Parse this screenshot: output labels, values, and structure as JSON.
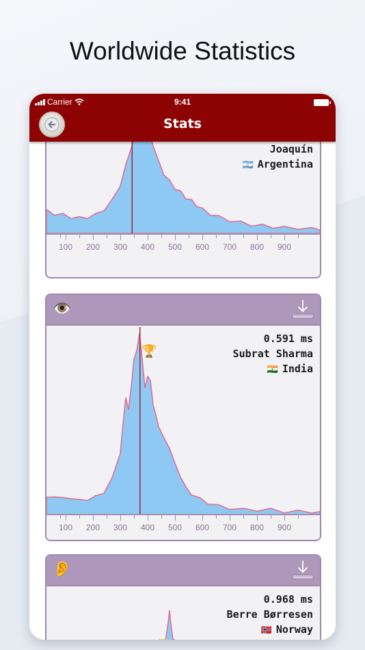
{
  "headline": "Worldwide Statistics",
  "status_bar": {
    "carrier": "Carrier",
    "time": "9:41"
  },
  "nav": {
    "title": "Stats"
  },
  "colors": {
    "nav": "#8d0203",
    "card_border": "#9f88ac",
    "card_head": "#ad98bb",
    "fill": "#8ec9f4",
    "stroke": "#de6f94",
    "marker": "#9a1c2e"
  },
  "cards": [
    {
      "sense_icon": "eye-icon",
      "record": {
        "value": "",
        "name": "Joaquín",
        "country": "Argentina",
        "flag": "🇦🇷"
      },
      "marker_ms": 343
    },
    {
      "sense_icon": "eye-icon",
      "record": {
        "value": "0.591 ms",
        "name": "Subrat Sharma",
        "country": "India",
        "flag": "🇮🇳"
      },
      "marker_ms": 372,
      "trophy": "🏆"
    },
    {
      "sense_icon": "ear-icon",
      "record": {
        "value": "0.968 ms",
        "name": "Berre Børresen",
        "country": "Norway",
        "flag": "🇳🇴"
      }
    }
  ],
  "chart_data": [
    {
      "type": "area",
      "xlabel": "",
      "ylabel": "",
      "xlim": [
        30,
        1030
      ],
      "x_ticks": [
        100,
        200,
        300,
        400,
        500,
        600,
        700,
        800,
        900
      ],
      "marker_x": 343,
      "x": [
        30,
        60,
        90,
        120,
        150,
        180,
        210,
        240,
        270,
        300,
        320,
        340,
        360,
        380,
        400,
        420,
        440,
        460,
        480,
        500,
        520,
        540,
        560,
        580,
        600,
        630,
        660,
        700,
        740,
        780,
        820,
        860,
        900,
        950,
        1000,
        1030
      ],
      "y": [
        0.22,
        0.18,
        0.17,
        0.15,
        0.14,
        0.15,
        0.17,
        0.22,
        0.3,
        0.45,
        0.62,
        0.8,
        0.95,
        1.0,
        0.98,
        0.82,
        0.66,
        0.55,
        0.48,
        0.42,
        0.38,
        0.33,
        0.3,
        0.26,
        0.22,
        0.18,
        0.15,
        0.12,
        0.1,
        0.08,
        0.07,
        0.06,
        0.05,
        0.05,
        0.04,
        0.03
      ]
    },
    {
      "type": "area",
      "xlabel": "",
      "ylabel": "",
      "xlim": [
        30,
        1030
      ],
      "x_ticks": [
        100,
        200,
        300,
        400,
        500,
        600,
        700,
        800,
        900
      ],
      "marker_x": 372,
      "x": [
        30,
        60,
        90,
        120,
        150,
        180,
        210,
        240,
        270,
        300,
        310,
        320,
        330,
        340,
        350,
        360,
        370,
        380,
        390,
        400,
        410,
        420,
        430,
        440,
        460,
        480,
        500,
        520,
        540,
        560,
        590,
        620,
        660,
        700,
        750,
        800,
        850,
        900,
        950,
        1000,
        1030
      ],
      "y": [
        0.1,
        0.11,
        0.09,
        0.1,
        0.08,
        0.09,
        0.1,
        0.13,
        0.2,
        0.35,
        0.5,
        0.66,
        0.58,
        0.72,
        0.86,
        0.92,
        1.0,
        0.88,
        0.7,
        0.78,
        0.74,
        0.62,
        0.55,
        0.5,
        0.42,
        0.38,
        0.28,
        0.22,
        0.15,
        0.12,
        0.09,
        0.07,
        0.05,
        0.04,
        0.03,
        0.03,
        0.03,
        0.02,
        0.02,
        0.02,
        0.02
      ]
    }
  ]
}
